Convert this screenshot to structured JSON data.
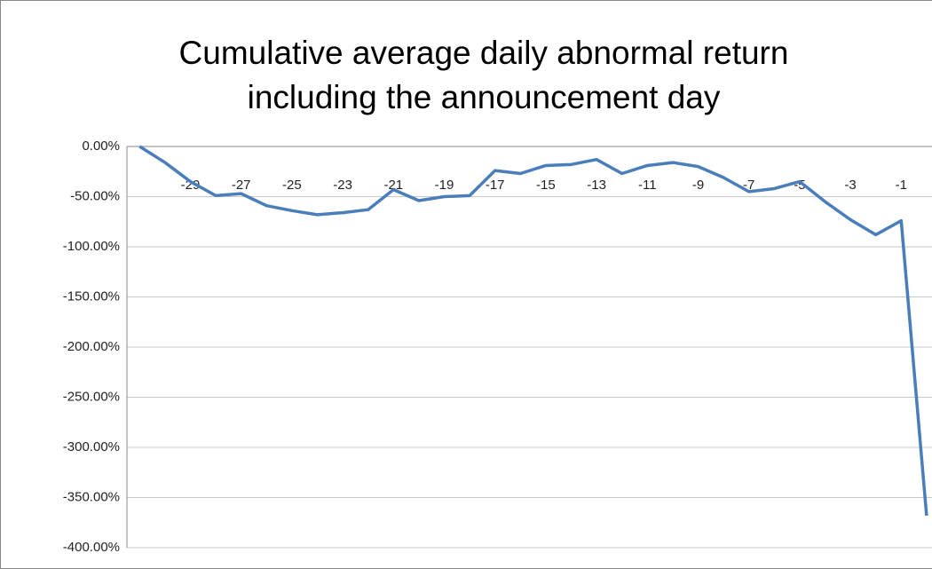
{
  "chart_data": {
    "type": "line",
    "title": [
      "Cumulative average daily abnormal return",
      "including the announcement day"
    ],
    "categories": [
      null,
      null,
      "-29",
      null,
      "-27",
      null,
      "-25",
      null,
      "-23",
      null,
      "-21",
      null,
      "-19",
      null,
      "-17",
      null,
      "-15",
      null,
      "-13",
      null,
      "-11",
      null,
      "-9",
      null,
      "-7",
      null,
      "-5",
      null,
      "-3",
      null,
      "-1",
      null
    ],
    "values": [
      0,
      -16,
      -35,
      -49,
      -47,
      -59,
      -64,
      -68,
      -66,
      -63,
      -43,
      -54,
      -50,
      -49,
      -24,
      -27,
      -19,
      -18,
      -13,
      -27,
      -19,
      -16,
      -20,
      -31,
      -45,
      -42,
      -35,
      -55,
      -73,
      -88,
      -74,
      -368
    ],
    "color": "#4a7ebb",
    "ylim": [
      -400,
      0
    ],
    "yticks": [
      {
        "value": 0,
        "label": "0.00%"
      },
      {
        "value": -50,
        "label": "-50.00%"
      },
      {
        "value": -100,
        "label": "-100.00%"
      },
      {
        "value": -150,
        "label": "-150.00%"
      },
      {
        "value": -200,
        "label": "-200.00%"
      },
      {
        "value": -250,
        "label": "-250.00%"
      },
      {
        "value": -300,
        "label": "-300.00%"
      },
      {
        "value": -350,
        "label": "-350.00%"
      },
      {
        "value": -400,
        "label": "-400.00%"
      }
    ],
    "grid": true
  }
}
